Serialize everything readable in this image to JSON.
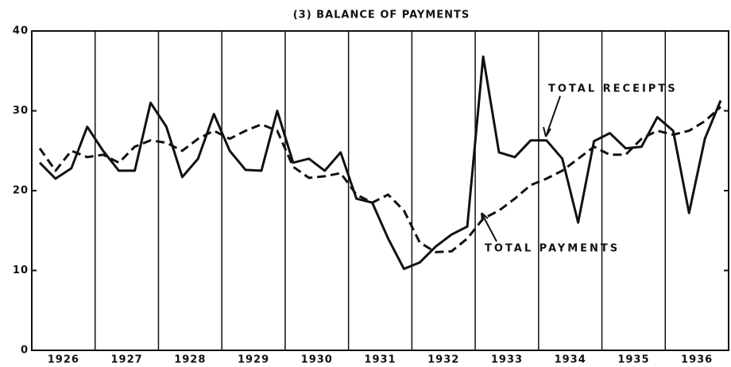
{
  "chart_data": {
    "type": "line",
    "title": "(3) BALANCE OF PAYMENTS",
    "categories": [
      "1926",
      null,
      null,
      null,
      "1927",
      null,
      null,
      null,
      "1928",
      null,
      null,
      null,
      "1929",
      null,
      null,
      null,
      "1930",
      null,
      null,
      null,
      "1931",
      null,
      null,
      null,
      "1932",
      null,
      null,
      null,
      "1933",
      null,
      null,
      null,
      "1934",
      null,
      null,
      null,
      "1935",
      null,
      null,
      null,
      "1936",
      null,
      null,
      null
    ],
    "series": [
      {
        "name": "TOTAL RECEIPTS",
        "color": "#111111",
        "dash": false,
        "values": [
          23.5,
          21.5,
          22.8,
          28,
          25,
          22.5,
          22.5,
          31,
          28,
          21.7,
          24,
          29.6,
          25,
          22.6,
          22.5,
          30,
          23.5,
          24,
          22.5,
          24.8,
          19,
          18.5,
          14,
          10.2,
          11,
          13,
          14.5,
          15.5,
          36.8,
          24.8,
          24.2,
          26.3,
          26.3,
          24,
          16,
          26.2,
          27.2,
          25.3,
          25.5,
          29.2,
          27.5,
          17.2,
          26.5,
          31.3
        ]
      },
      {
        "name": "TOTAL PAYMENTS",
        "color": "#111111",
        "dash": true,
        "values": [
          25.3,
          22.5,
          25,
          24.2,
          24.5,
          23.5,
          25.5,
          26.3,
          26,
          25,
          26.5,
          27.5,
          26.5,
          27.5,
          28.3,
          27.5,
          23,
          21.6,
          21.8,
          22.2,
          19.5,
          18.5,
          19.5,
          17.5,
          13.5,
          12.3,
          12.4,
          14,
          16.5,
          17.5,
          19,
          20.7,
          21.5,
          22.5,
          24,
          25.5,
          24.5,
          24.5,
          26.5,
          27.5,
          27,
          27.5,
          28.7,
          30.5
        ]
      }
    ],
    "ylim": [
      0,
      40
    ],
    "yticks": [
      0,
      10,
      20,
      30,
      40
    ],
    "grid": false
  }
}
